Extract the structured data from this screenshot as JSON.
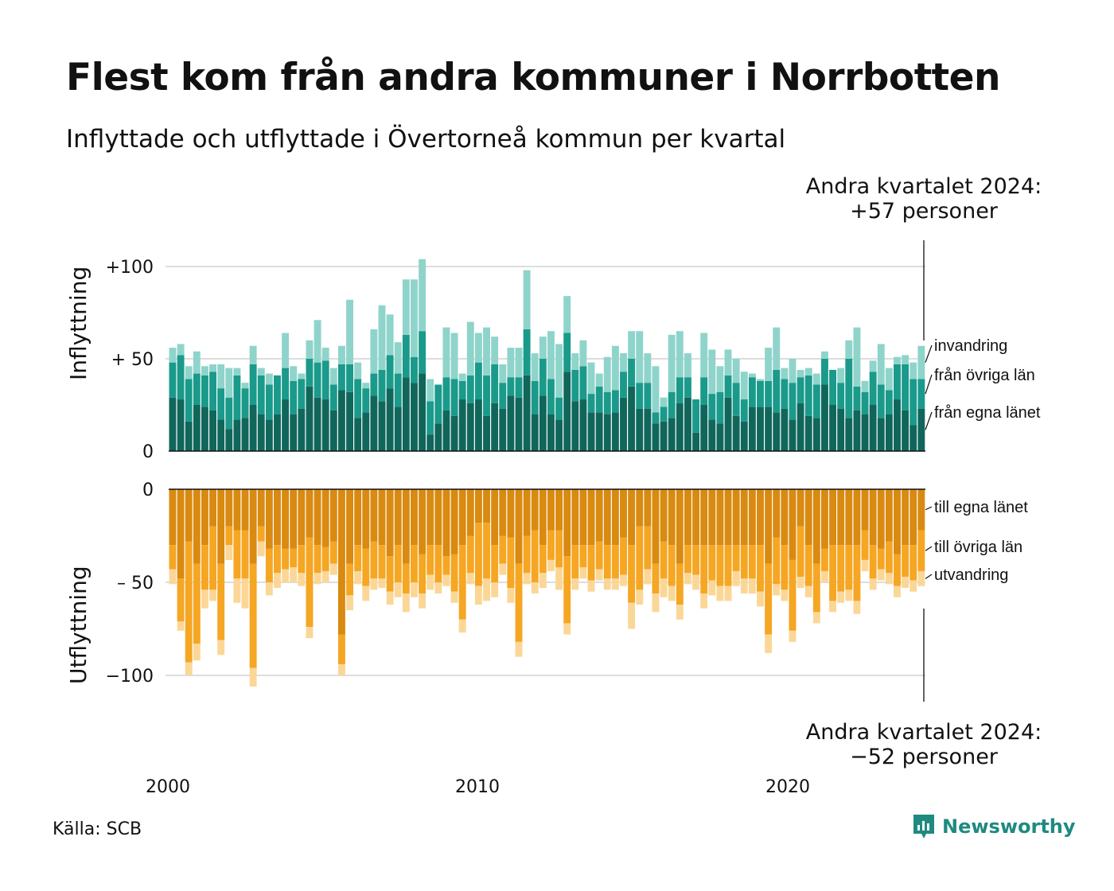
{
  "title": "Flest kom från andra kommuner i Norrbotten",
  "subtitle": "Inflyttade och utflyttade i Övertorneå kommun per kvartal",
  "source": "Källa: SCB",
  "logo_text": "Newsworthy",
  "colors": {
    "in_egna": "#11665b",
    "in_ovriga": "#1a9a8b",
    "in_invandring": "#8fd4cb",
    "ut_egna": "#d98a10",
    "ut_ovriga": "#f5a623",
    "ut_utvandring": "#fbd797",
    "grid": "#dddddd",
    "logo": "#1f8a80"
  },
  "chart_data": [
    {
      "type": "bar",
      "stacked": true,
      "title": "Inflyttning",
      "ylabel": "Inflyttning",
      "ylim": [
        0,
        100
      ],
      "yticks": [
        {
          "value": 0,
          "label": "0"
        },
        {
          "value": 50,
          "label": "+ 50"
        },
        {
          "value": 100,
          "label": "+100"
        }
      ],
      "x_labels": [
        "2000",
        "2010",
        "2020"
      ],
      "x_start": "2000 Q1",
      "x_end": "2024 Q2",
      "annotation": {
        "line1": "Andra kvartalet 2024:",
        "line2": "+57 personer"
      },
      "series": [
        {
          "name": "från egna länet",
          "values": [
            29,
            28,
            16,
            25,
            24,
            22,
            17,
            12,
            17,
            18,
            25,
            20,
            17,
            20,
            28,
            20,
            23,
            35,
            29,
            28,
            22,
            33,
            32,
            18,
            21,
            30,
            27,
            34,
            24,
            40,
            37,
            42,
            9,
            15,
            22,
            19,
            28,
            26,
            28,
            19,
            26,
            23,
            30,
            29,
            41,
            20,
            30,
            20,
            17,
            43,
            27,
            28,
            21,
            21,
            20,
            21,
            29,
            35,
            23,
            23,
            15,
            16,
            18,
            26,
            29,
            10,
            25,
            17,
            15,
            29,
            19,
            16,
            24,
            24,
            24,
            21,
            23,
            17,
            26,
            19,
            18,
            36,
            25,
            23,
            18,
            22,
            20,
            25,
            18,
            20,
            28,
            22,
            14,
            23
          ]
        },
        {
          "name": "från övriga län",
          "values": [
            19,
            24,
            23,
            17,
            17,
            21,
            17,
            17,
            24,
            16,
            22,
            21,
            19,
            21,
            17,
            18,
            16,
            15,
            19,
            21,
            14,
            14,
            15,
            21,
            13,
            12,
            17,
            18,
            18,
            23,
            14,
            23,
            18,
            21,
            18,
            20,
            10,
            15,
            20,
            22,
            21,
            14,
            10,
            11,
            25,
            18,
            20,
            19,
            12,
            21,
            17,
            18,
            10,
            14,
            12,
            12,
            14,
            15,
            14,
            14,
            6,
            8,
            14,
            14,
            11,
            18,
            15,
            14,
            17,
            12,
            18,
            12,
            16,
            14,
            14,
            23,
            16,
            20,
            14,
            22,
            18,
            14,
            19,
            14,
            32,
            13,
            12,
            18,
            18,
            13,
            19,
            25,
            25,
            16
          ]
        },
        {
          "name": "invandring",
          "values": [
            8,
            6,
            7,
            12,
            5,
            4,
            13,
            16,
            4,
            3,
            10,
            4,
            6,
            0,
            19,
            8,
            3,
            10,
            23,
            7,
            9,
            10,
            35,
            9,
            3,
            24,
            35,
            22,
            17,
            30,
            42,
            39,
            12,
            0,
            27,
            25,
            4,
            29,
            16,
            26,
            15,
            10,
            16,
            16,
            32,
            15,
            12,
            26,
            29,
            20,
            9,
            14,
            17,
            7,
            19,
            24,
            10,
            15,
            28,
            16,
            25,
            5,
            31,
            25,
            13,
            0,
            24,
            24,
            14,
            14,
            13,
            15,
            2,
            1,
            18,
            23,
            6,
            13,
            4,
            4,
            6,
            4,
            0,
            8,
            10,
            32,
            6,
            6,
            22,
            12,
            4,
            5,
            9,
            18
          ]
        }
      ]
    },
    {
      "type": "bar",
      "stacked": true,
      "title": "Utflyttning",
      "ylabel": "Utflyttning",
      "ylim": [
        -100,
        0
      ],
      "yticks": [
        {
          "value": 0,
          "label": "0"
        },
        {
          "value": -50,
          "label": "– 50"
        },
        {
          "value": -100,
          "label": "−100"
        }
      ],
      "x_labels": [
        "2000",
        "2010",
        "2020"
      ],
      "x_start": "2000 Q1",
      "x_end": "2024 Q2",
      "annotation": {
        "line1": "Andra kvartalet 2024:",
        "line2": "−52 personer"
      },
      "series": [
        {
          "name": "till egna länet",
          "values": [
            -30,
            -48,
            -28,
            -40,
            -30,
            -20,
            -40,
            -20,
            -22,
            -22,
            -40,
            -20,
            -32,
            -30,
            -32,
            -32,
            -30,
            -26,
            -30,
            -31,
            -28,
            -78,
            -40,
            -30,
            -32,
            -28,
            -30,
            -36,
            -30,
            -40,
            -30,
            -35,
            -30,
            -30,
            -36,
            -35,
            -30,
            -25,
            -18,
            -18,
            -30,
            -25,
            -26,
            -40,
            -25,
            -22,
            -30,
            -22,
            -22,
            -36,
            -30,
            -30,
            -30,
            -28,
            -30,
            -30,
            -26,
            -30,
            -20,
            -20,
            -40,
            -28,
            -30,
            -40,
            -30,
            -30,
            -30,
            -30,
            -30,
            -30,
            -30,
            -30,
            -30,
            -30,
            -40,
            -26,
            -30,
            -38,
            -20,
            -30,
            -40,
            -32,
            -30,
            -30,
            -30,
            -30,
            -22,
            -30,
            -32,
            -28,
            -35,
            -30,
            -30,
            -22
          ]
        },
        {
          "name": "till övriga län",
          "values": [
            -13,
            -23,
            -65,
            -43,
            -24,
            -34,
            -41,
            -10,
            -26,
            -26,
            -56,
            -8,
            -18,
            -15,
            -11,
            -10,
            -15,
            -48,
            -15,
            -13,
            -12,
            -16,
            -17,
            -14,
            -20,
            -20,
            -18,
            -19,
            -20,
            -16,
            -20,
            -21,
            -16,
            -20,
            -10,
            -20,
            -40,
            -20,
            -34,
            -30,
            -20,
            -15,
            -27,
            -42,
            -20,
            -28,
            -15,
            -16,
            -20,
            -36,
            -18,
            -12,
            -19,
            -15,
            -18,
            -18,
            -20,
            -31,
            -34,
            -23,
            -16,
            -20,
            -22,
            -22,
            -15,
            -16,
            -26,
            -19,
            -22,
            -22,
            -14,
            -18,
            -18,
            -25,
            -38,
            -25,
            -24,
            -38,
            -27,
            -22,
            -26,
            -12,
            -30,
            -25,
            -24,
            -30,
            -16,
            -18,
            -11,
            -17,
            -17,
            -17,
            -19,
            -22
          ]
        },
        {
          "name": "utvandring",
          "values": [
            -8,
            -5,
            -7,
            -9,
            -10,
            -6,
            -8,
            -8,
            -13,
            -16,
            -10,
            -8,
            -7,
            -8,
            -7,
            -8,
            -7,
            -6,
            -6,
            -6,
            -6,
            -6,
            -8,
            -7,
            -8,
            -6,
            -5,
            -7,
            -8,
            -10,
            -8,
            -8,
            -8,
            -6,
            -6,
            -6,
            -7,
            -6,
            -10,
            -12,
            -8,
            -6,
            -8,
            -8,
            -6,
            -6,
            -8,
            -6,
            -12,
            -6,
            -6,
            -6,
            -6,
            -6,
            -6,
            -6,
            -6,
            -14,
            -8,
            -8,
            -10,
            -10,
            -8,
            -8,
            -6,
            -8,
            -8,
            -8,
            -8,
            -8,
            -8,
            -8,
            -8,
            -8,
            -10,
            -6,
            -6,
            -6,
            -6,
            -6,
            -6,
            -6,
            -6,
            -6,
            -6,
            -7,
            -6,
            -6,
            -6,
            -6,
            -6,
            -6,
            -6,
            -8
          ]
        }
      ]
    }
  ]
}
